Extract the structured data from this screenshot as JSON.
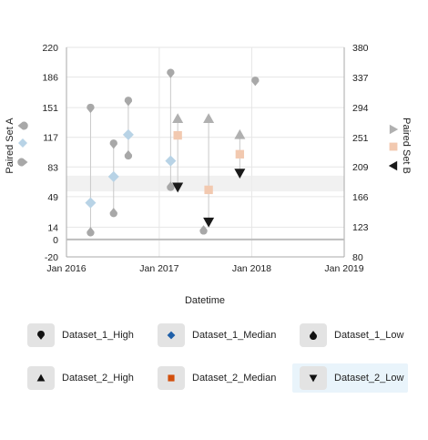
{
  "chart_data": {
    "type": "scatter",
    "x_axis": {
      "title": "Datetime",
      "range": [
        "2016-01-01",
        "2019-01-01"
      ],
      "ticks": [
        "Jan 2016",
        "Jan 2017",
        "Jan 2018",
        "Jan 2019"
      ]
    },
    "y_axis_left": {
      "title": "Paired Set A",
      "range": [
        -20,
        220
      ],
      "ticks": [
        "-20",
        "0",
        "14",
        "49",
        "83",
        "117",
        "151",
        "186",
        "220"
      ]
    },
    "y_axis_right": {
      "title": "Paired Set B",
      "range": [
        80,
        380
      ],
      "ticks": [
        "80",
        "123",
        "166",
        "209",
        "251",
        "294",
        "337",
        "380"
      ]
    },
    "band": {
      "axis": "left",
      "from": 55,
      "to": 73
    },
    "grid": true,
    "series": [
      {
        "name": "Dataset_1_High",
        "axis": "left",
        "marker": "drop-down",
        "color": "#a8a8a8",
        "points": [
          [
            "2016-04-05",
            150
          ],
          [
            "2016-07-05",
            109
          ],
          [
            "2016-09-01",
            158
          ],
          [
            "2017-02-15",
            190
          ],
          [
            "2018-01-15",
            181
          ]
        ]
      },
      {
        "name": "Dataset_1_Median",
        "axis": "left",
        "marker": "diamond",
        "color": "#b8d3e6",
        "points": [
          [
            "2016-04-05",
            42
          ],
          [
            "2016-07-05",
            72
          ],
          [
            "2016-09-01",
            120
          ],
          [
            "2017-02-15",
            90
          ]
        ]
      },
      {
        "name": "Dataset_1_Low",
        "axis": "left",
        "marker": "drop-up",
        "color": "#a8a8a8",
        "points": [
          [
            "2016-04-05",
            9
          ],
          [
            "2016-07-05",
            31
          ],
          [
            "2016-09-01",
            97
          ],
          [
            "2017-02-15",
            61
          ],
          [
            "2017-06-25",
            11
          ]
        ]
      },
      {
        "name": "Dataset_2_High",
        "axis": "right",
        "marker": "triangle-up",
        "color": "#b0b0b0",
        "points": [
          [
            "2017-03-15",
            278
          ],
          [
            "2017-07-15",
            278
          ],
          [
            "2017-11-15",
            255
          ]
        ]
      },
      {
        "name": "Dataset_2_Median",
        "axis": "right",
        "marker": "square",
        "color": "#f2c9b0",
        "points": [
          [
            "2017-03-15",
            254
          ],
          [
            "2017-07-15",
            176
          ],
          [
            "2017-11-15",
            227
          ]
        ]
      },
      {
        "name": "Dataset_2_Low",
        "axis": "right",
        "marker": "triangle-down",
        "color": "#1a1a1a",
        "points": [
          [
            "2017-03-15",
            180
          ],
          [
            "2017-07-15",
            130
          ],
          [
            "2017-11-15",
            200
          ]
        ]
      }
    ],
    "ranges": [
      {
        "axis": "left",
        "x": "2016-04-05",
        "from": 9,
        "to": 150
      },
      {
        "axis": "left",
        "x": "2016-07-05",
        "from": 31,
        "to": 109
      },
      {
        "axis": "left",
        "x": "2016-09-01",
        "from": 97,
        "to": 158
      },
      {
        "axis": "left",
        "x": "2017-02-15",
        "from": 61,
        "to": 190
      },
      {
        "axis": "right",
        "x": "2017-03-15",
        "from": 180,
        "to": 278
      },
      {
        "axis": "right",
        "x": "2017-07-15",
        "from": 130,
        "to": 278
      },
      {
        "axis": "right",
        "x": "2017-11-15",
        "from": 200,
        "to": 255
      }
    ],
    "left_axis_markers": [
      {
        "marker": "drop-left",
        "color": "#a8a8a8"
      },
      {
        "marker": "diamond",
        "color": "#b8d3e6"
      },
      {
        "marker": "drop-right",
        "color": "#a8a8a8"
      }
    ],
    "right_axis_markers": [
      {
        "marker": "triangle-right",
        "color": "#b0b0b0"
      },
      {
        "marker": "square",
        "color": "#f2c9b0"
      },
      {
        "marker": "triangle-left",
        "color": "#1a1a1a"
      }
    ]
  },
  "legend": {
    "items": [
      {
        "label": "Dataset_1_High",
        "icon": "drop-down",
        "color": "#111111",
        "selected": false
      },
      {
        "label": "Dataset_1_Median",
        "icon": "diamond",
        "color": "#1f5fa8",
        "selected": false
      },
      {
        "label": "Dataset_1_Low",
        "icon": "drop-up",
        "color": "#111111",
        "selected": false
      },
      {
        "label": "Dataset_2_High",
        "icon": "triangle-up",
        "color": "#111111",
        "selected": false
      },
      {
        "label": "Dataset_2_Median",
        "icon": "square",
        "color": "#d24f0c",
        "selected": false
      },
      {
        "label": "Dataset_2_Low",
        "icon": "triangle-down",
        "color": "#111111",
        "selected": true
      }
    ]
  }
}
